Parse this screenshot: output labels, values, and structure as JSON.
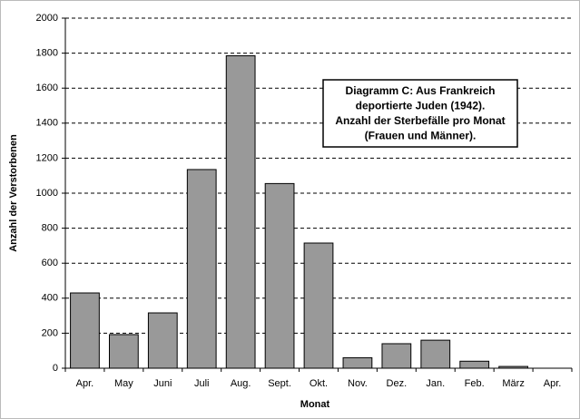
{
  "chart_data": {
    "type": "bar",
    "title": [
      "Diagramm C: Aus Frankreich",
      "deportierte Juden (1942).",
      "Anzahl der Sterbefälle pro Monat",
      "(Frauen und Männer)."
    ],
    "x_label": "Monat",
    "y_label": "Anzahl der Verstorbenen",
    "categories": [
      "Apr.",
      "May",
      "Juni",
      "Juli",
      "Aug.",
      "Sept.",
      "Okt.",
      "Nov.",
      "Dez.",
      "Jan.",
      "Feb.",
      "März",
      "Apr."
    ],
    "values": [
      430,
      192,
      316,
      1135,
      1785,
      1055,
      715,
      60,
      140,
      160,
      40,
      10,
      0
    ],
    "color": "#999999",
    "ylim": [
      0,
      2000
    ],
    "yticks": [
      0,
      200,
      400,
      600,
      800,
      1000,
      1200,
      1400,
      1600,
      1800,
      2000
    ],
    "grid": true
  }
}
